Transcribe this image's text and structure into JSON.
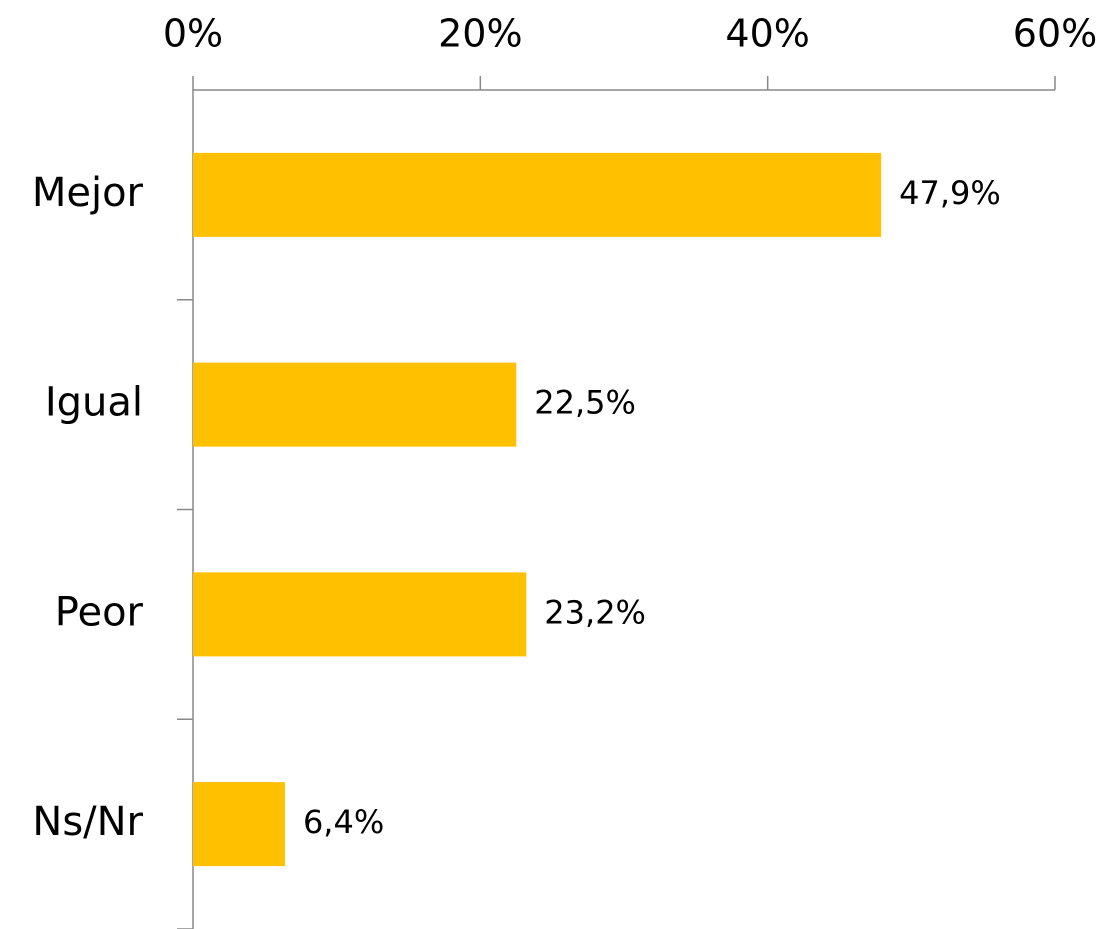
{
  "chart_data": {
    "type": "bar",
    "orientation": "horizontal",
    "categories": [
      "Mejor",
      "Igual",
      "Peor",
      "Ns/Nr"
    ],
    "values": [
      47.9,
      22.5,
      23.2,
      6.4
    ],
    "value_labels": [
      "47,9%",
      "22,5%",
      "23,2%",
      "6,4%"
    ],
    "color": "#FFC000",
    "xlim": [
      0,
      60
    ],
    "xticks": [
      {
        "value": 0,
        "label": "0%"
      },
      {
        "value": 20,
        "label": "20%"
      },
      {
        "value": 40,
        "label": "40%"
      },
      {
        "value": 60,
        "label": "60%"
      }
    ],
    "grid": false
  }
}
